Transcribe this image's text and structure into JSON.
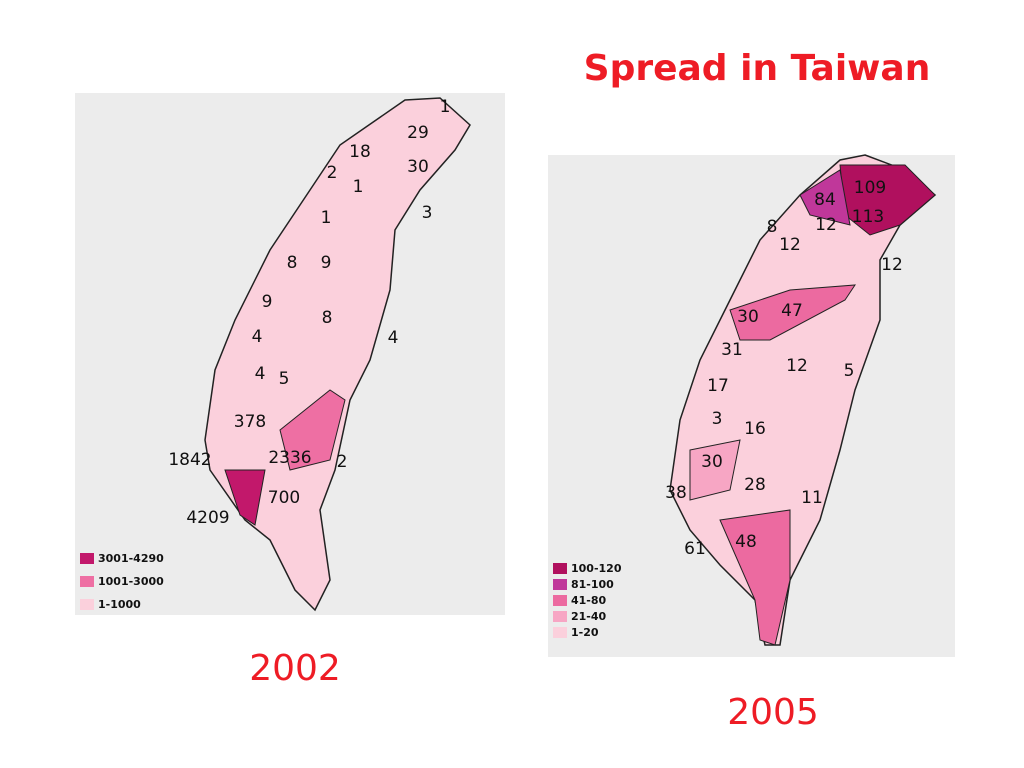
{
  "title": "Spread in Taiwan",
  "maps": [
    {
      "caption": "2002",
      "legend": [
        {
          "label": "3001-4290",
          "color": "#c2186b"
        },
        {
          "label": "1001-3000",
          "color": "#ee6fa3"
        },
        {
          "label": "1-1000",
          "color": "#fbd0dc"
        }
      ],
      "regions": [
        1,
        29,
        18,
        30,
        2,
        1,
        1,
        3,
        8,
        9,
        9,
        8,
        4,
        4,
        4,
        5,
        378,
        1842,
        2336,
        2,
        4209,
        700
      ]
    },
    {
      "caption": "2005",
      "legend": [
        {
          "label": "100-120",
          "color": "#b0105e"
        },
        {
          "label": "81-100",
          "color": "#c0379a"
        },
        {
          "label": "41-80",
          "color": "#ec6aa0"
        },
        {
          "label": "21-40",
          "color": "#f7a6c4"
        },
        {
          "label": "1-20",
          "color": "#fbd0dc"
        }
      ],
      "regions": [
        109,
        84,
        113,
        8,
        12,
        12,
        12,
        30,
        47,
        31,
        12,
        5,
        17,
        3,
        16,
        30,
        38,
        28,
        11,
        61,
        48
      ]
    }
  ]
}
